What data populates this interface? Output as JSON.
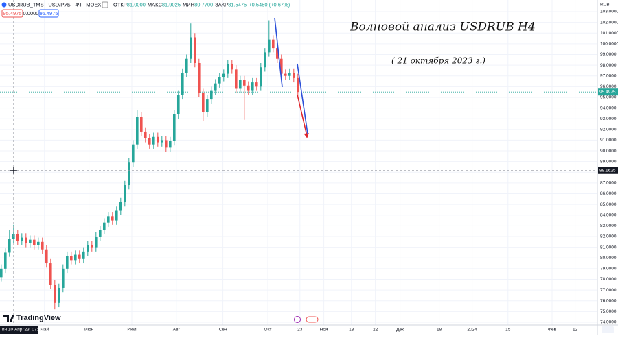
{
  "header": {
    "symbol": "USDRUB_TMS · USD/РУБ · 4Ч · MOEX",
    "ohlc": [
      {
        "label": "ОТКР",
        "value": "81.0000"
      },
      {
        "label": "МАКС",
        "value": "81.9025"
      },
      {
        "label": "МИН",
        "value": "80.7700"
      },
      {
        "label": "ЗАКР",
        "value": "81.5475"
      }
    ],
    "change": "+0.5450 (+0.67%)",
    "sell": "95.4975",
    "spread": "0.0000",
    "buy": "95.4975"
  },
  "currency": "RUB",
  "logo": "TradingView",
  "chart_data": {
    "type": "candlestick",
    "title": "Волновой анализ USDRUB H4",
    "subtitle": "( 21 октября 2023 г.)",
    "up_color": "#26a69a",
    "down_color": "#ef5350",
    "grid": true,
    "x": [
      -3,
      -2,
      -1,
      0,
      1,
      2,
      3,
      4,
      5,
      6,
      7,
      8,
      9,
      10,
      11,
      12,
      13,
      14,
      15,
      16,
      17,
      18,
      19,
      20,
      21,
      22,
      23,
      24,
      25,
      26,
      27,
      28,
      29,
      30,
      31,
      32,
      33,
      34,
      35,
      36,
      37,
      38,
      39,
      40,
      41,
      42,
      43,
      44,
      45,
      46,
      47,
      48,
      49,
      50,
      51,
      52,
      53,
      54,
      55,
      56,
      57,
      58,
      59,
      60,
      61,
      62,
      63,
      64,
      65,
      66,
      67,
      68,
      69
    ],
    "open": [
      78.2,
      79.0,
      80.5,
      81.8,
      82.2,
      81.6,
      81.9,
      81.4,
      81.7,
      81.2,
      81.5,
      80.8,
      79.5,
      77.5,
      75.8,
      77.2,
      79.0,
      80.2,
      79.8,
      80.3,
      79.9,
      80.6,
      81.2,
      81.0,
      82.0,
      82.6,
      83.3,
      83.9,
      83.5,
      84.4,
      85.2,
      86.8,
      88.9,
      90.6,
      93.2,
      91.8,
      91.2,
      90.6,
      91.3,
      90.8,
      91.0,
      90.3,
      90.9,
      93.4,
      95.2,
      97.3,
      98.6,
      100.6,
      98.2,
      95.4,
      93.6,
      94.8,
      95.6,
      96.3,
      96.9,
      97.2,
      98.1,
      97.6,
      95.8,
      96.6,
      96.1,
      95.6,
      96.4,
      96.0,
      97.8,
      99.2,
      100.4,
      99.6,
      98.6,
      97.2,
      97.0,
      97.3,
      96.8
    ],
    "high": [
      79.4,
      80.9,
      82.6,
      83.1,
      82.6,
      82.3,
      82.3,
      82.1,
      82.1,
      81.9,
      81.9,
      81.2,
      79.9,
      77.9,
      77.6,
      79.4,
      80.6,
      80.6,
      80.7,
      80.7,
      81.0,
      81.6,
      81.6,
      82.4,
      83.0,
      83.7,
      84.3,
      84.3,
      84.8,
      85.6,
      87.2,
      89.3,
      91.0,
      93.8,
      93.6,
      92.2,
      91.6,
      91.7,
      91.7,
      91.4,
      91.4,
      91.3,
      93.8,
      95.6,
      97.7,
      99.0,
      101.9,
      101.0,
      98.6,
      95.8,
      95.2,
      96.0,
      96.7,
      97.3,
      97.6,
      98.5,
      98.5,
      98.0,
      97.0,
      97.0,
      96.5,
      96.8,
      96.8,
      98.2,
      99.6,
      102.2,
      100.8,
      100.0,
      99.0,
      97.6,
      97.7,
      97.7,
      97.2
    ],
    "low": [
      77.8,
      78.6,
      80.1,
      81.4,
      81.2,
      81.2,
      81.0,
      81.0,
      80.8,
      80.8,
      80.4,
      79.1,
      77.1,
      75.2,
      75.4,
      76.8,
      78.6,
      79.4,
      79.4,
      79.5,
      79.5,
      80.2,
      80.6,
      80.6,
      81.6,
      82.2,
      82.9,
      83.1,
      83.1,
      84.0,
      84.8,
      86.4,
      88.5,
      90.2,
      91.4,
      90.8,
      90.2,
      90.2,
      90.4,
      90.4,
      89.9,
      89.9,
      90.5,
      93.0,
      94.8,
      96.9,
      98.2,
      97.8,
      95.0,
      92.8,
      93.2,
      94.4,
      95.2,
      95.9,
      96.5,
      96.8,
      97.2,
      95.4,
      95.4,
      92.9,
      95.2,
      95.2,
      95.6,
      95.6,
      97.4,
      98.8,
      99.2,
      98.2,
      96.8,
      96.6,
      96.6,
      96.4,
      95.1
    ],
    "close": [
      79.0,
      80.5,
      81.8,
      82.2,
      81.6,
      81.9,
      81.4,
      81.7,
      81.2,
      81.5,
      80.8,
      79.5,
      77.5,
      75.8,
      77.2,
      79.0,
      80.2,
      79.8,
      80.3,
      79.9,
      80.6,
      81.2,
      81.0,
      82.0,
      82.6,
      83.3,
      83.9,
      83.5,
      84.4,
      85.2,
      86.8,
      88.9,
      90.6,
      93.2,
      91.8,
      91.2,
      90.6,
      91.3,
      90.8,
      91.0,
      90.3,
      90.9,
      93.4,
      95.2,
      97.3,
      98.6,
      100.6,
      98.2,
      95.4,
      93.6,
      94.8,
      95.6,
      96.3,
      96.9,
      97.2,
      98.1,
      97.6,
      95.8,
      96.6,
      96.1,
      95.6,
      96.4,
      96.0,
      97.8,
      99.2,
      100.4,
      99.6,
      98.6,
      97.2,
      97.0,
      97.3,
      96.8,
      95.4975
    ],
    "xlim": [
      -3.3,
      141.7
    ],
    "xticks": [
      {
        "value": 7.5,
        "label": "Май"
      },
      {
        "value": 18.3,
        "label": "Июн"
      },
      {
        "value": 28.7,
        "label": "Июл"
      },
      {
        "value": 39.5,
        "label": "Авг"
      },
      {
        "value": 50.8,
        "label": "Сен"
      },
      {
        "value": 61.7,
        "label": "Окт"
      },
      {
        "value": 69.5,
        "label": "23"
      },
      {
        "value": 75.3,
        "label": "Ноя"
      },
      {
        "value": 82,
        "label": "13"
      },
      {
        "value": 87.8,
        "label": "22"
      },
      {
        "value": 93.8,
        "label": "Дек"
      },
      {
        "value": 103.3,
        "label": "18"
      },
      {
        "value": 111.3,
        "label": "2024"
      },
      {
        "value": 120,
        "label": "15"
      },
      {
        "value": 130.7,
        "label": "Фев"
      },
      {
        "value": 136.3,
        "label": "12"
      }
    ],
    "ylim": [
      73.74,
      104.09
    ],
    "yticks": [
      {
        "value": 74,
        "label": "74.0000"
      },
      {
        "value": 75,
        "label": "75.0000"
      },
      {
        "value": 76,
        "label": "76.0000"
      },
      {
        "value": 77,
        "label": "77.0000"
      },
      {
        "value": 78,
        "label": "78.0000"
      },
      {
        "value": 79,
        "label": "79.0000"
      },
      {
        "value": 80,
        "label": "80.0000"
      },
      {
        "value": 81,
        "label": "81.0000"
      },
      {
        "value": 82,
        "label": "82.0000"
      },
      {
        "value": 83,
        "label": "83.0000"
      },
      {
        "value": 84,
        "label": "84.0000"
      },
      {
        "value": 85,
        "label": "85.0000"
      },
      {
        "value": 86,
        "label": "86.0000"
      },
      {
        "value": 87,
        "label": "87.0000"
      },
      {
        "value": 88,
        "label": "88.0000"
      },
      {
        "value": 89,
        "label": "89.0000"
      },
      {
        "value": 90,
        "label": "90.0000"
      },
      {
        "value": 91,
        "label": "91.0000"
      },
      {
        "value": 92,
        "label": "92.0000"
      },
      {
        "value": 93,
        "label": "93.0000"
      },
      {
        "value": 94,
        "label": "94.0000"
      },
      {
        "value": 95,
        "label": "95.0000"
      },
      {
        "value": 96,
        "label": "96.0000"
      },
      {
        "value": 97,
        "label": "97.0000"
      },
      {
        "value": 98,
        "label": "98.0000"
      },
      {
        "value": 99,
        "label": "99.0000"
      },
      {
        "value": 100,
        "label": "100.0000"
      },
      {
        "value": 101,
        "label": "101.0000"
      },
      {
        "value": 102,
        "label": "102.0000"
      },
      {
        "value": 103,
        "label": "103.0000"
      }
    ],
    "last_price": {
      "value": 95.4975,
      "label": "95.4975"
    },
    "crosshair": {
      "x": 0,
      "x_label": "пн 10 Апр '23  07:00",
      "y": 88.1625,
      "y_label": "88.1625"
    }
  }
}
